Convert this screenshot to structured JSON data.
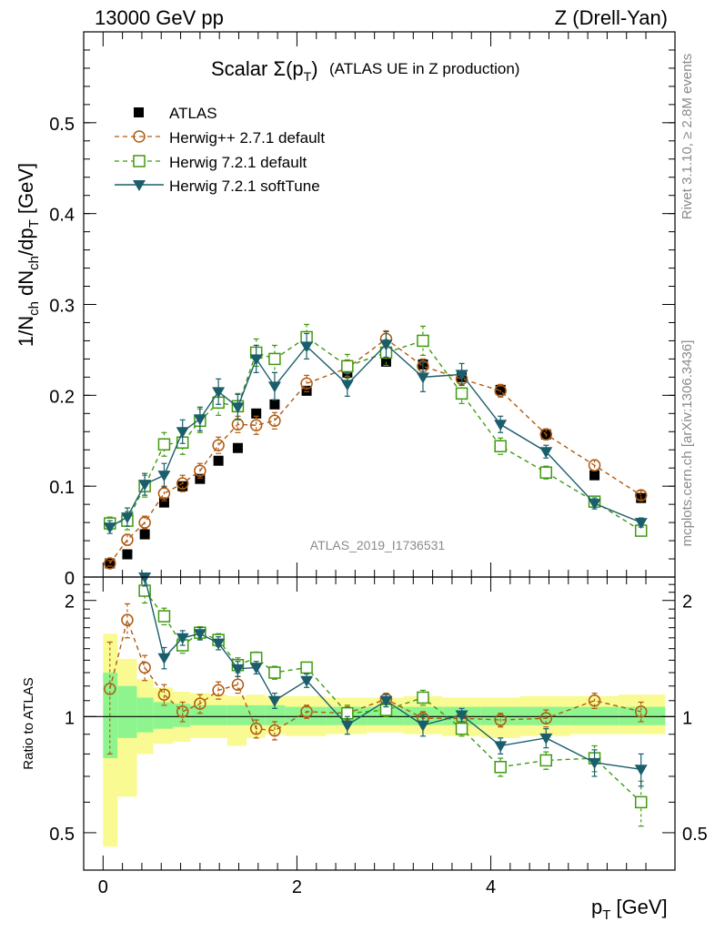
{
  "header": {
    "energy_label": "13000 GeV pp",
    "process_label": "Z (Drell-Yan)"
  },
  "side_text": {
    "rivet": "Rivet 3.1.10, ≥ 2.8M events",
    "source": "mcplots.cern.ch [arXiv:1306.3436]"
  },
  "chart_data": [
    {
      "type": "scatter",
      "title": "Scalar Σ(p_T) (ATLAS UE in Z production)",
      "title_main": "Scalar Σ(p",
      "title_sub": "T",
      "title_close": ")",
      "title_rest": "(ATLAS UE in Z production)",
      "analysis_label": "ATLAS_2019_I1736531",
      "ylabel": "1/N_ch dN_ch/dp_T [GeV]",
      "xlim": [
        -0.2,
        5.9
      ],
      "ylim": [
        0,
        0.6
      ],
      "xticks": [
        0,
        2,
        4
      ],
      "yticks": [
        0,
        0.1,
        0.2,
        0.3,
        0.4,
        0.5
      ],
      "ytick_labels": [
        "0",
        "0.1",
        "0.2",
        "0.3",
        "0.4",
        "0.5"
      ],
      "grid": false,
      "legend_position": "top-left",
      "x": [
        0.07,
        0.25,
        0.43,
        0.63,
        0.82,
        1.0,
        1.19,
        1.39,
        1.58,
        1.77,
        2.1,
        2.52,
        2.92,
        3.3,
        3.7,
        4.1,
        4.57,
        5.07,
        5.55
      ],
      "series": [
        {
          "name": "ATLAS",
          "color": "#000000",
          "marker": "square-filled",
          "values": [
            0.015,
            0.025,
            0.047,
            0.082,
            0.1,
            0.108,
            0.128,
            0.142,
            0.18,
            0.19,
            0.205,
            0.225,
            0.237,
            0.234,
            0.22,
            0.206,
            0.157,
            0.112,
            0.087
          ]
        },
        {
          "name": "Herwig++ 2.7.1 default",
          "color": "#b05a0f",
          "marker": "circle-open",
          "dash": "5,4",
          "values": [
            0.015,
            0.041,
            0.06,
            0.092,
            0.103,
            0.117,
            0.145,
            0.168,
            0.167,
            0.172,
            0.213,
            0.23,
            0.262,
            0.232,
            0.218,
            0.205,
            0.157,
            0.123,
            0.09
          ],
          "errors": [
            0.003,
            0.006,
            0.007,
            0.008,
            0.009,
            0.008,
            0.009,
            0.009,
            0.01,
            0.009,
            0.009,
            0.009,
            0.009,
            0.008,
            0.007,
            0.007,
            0.006,
            0.006,
            0.005
          ]
        },
        {
          "name": "Herwig 7.2.1 default",
          "color": "#3e9a0e",
          "marker": "square-open",
          "dash": "5,4",
          "values": [
            0.059,
            0.062,
            0.1,
            0.146,
            0.148,
            0.172,
            0.192,
            0.188,
            0.247,
            0.24,
            0.264,
            0.232,
            0.247,
            0.26,
            0.202,
            0.144,
            0.115,
            0.083,
            0.051
          ],
          "errors": [
            0.007,
            0.01,
            0.012,
            0.013,
            0.013,
            0.013,
            0.014,
            0.014,
            0.015,
            0.015,
            0.014,
            0.013,
            0.014,
            0.016,
            0.011,
            0.009,
            0.007,
            0.006,
            0.005
          ]
        },
        {
          "name": "Herwig 7.2.1 softTune",
          "color": "#1b5e6b",
          "marker": "triangle-down-filled",
          "values": [
            0.055,
            0.066,
            0.102,
            0.112,
            0.16,
            0.174,
            0.204,
            0.187,
            0.24,
            0.21,
            0.254,
            0.212,
            0.256,
            0.22,
            0.223,
            0.168,
            0.138,
            0.081,
            0.06
          ],
          "errors": [
            0.007,
            0.01,
            0.012,
            0.013,
            0.013,
            0.013,
            0.014,
            0.014,
            0.015,
            0.015,
            0.014,
            0.013,
            0.014,
            0.016,
            0.012,
            0.009,
            0.007,
            0.006,
            0.005
          ]
        }
      ]
    },
    {
      "type": "scatter",
      "ylabel": "Ratio to ATLAS",
      "xlabel": "p_T [GeV]",
      "xlabel_main": "p",
      "xlabel_sub": "T",
      "xlabel_unit": "[GeV]",
      "xlim": [
        -0.2,
        5.9
      ],
      "ylim": [
        0.4,
        2.3
      ],
      "xticks": [
        0,
        2,
        4
      ],
      "xtick_labels": [
        "0",
        "2",
        "4"
      ],
      "yticks": [
        0.5,
        1,
        2
      ],
      "ytick_labels": [
        "0.5",
        "1",
        "2"
      ],
      "reference_line": 1,
      "uncertainty_bands": {
        "bin_edges": [
          0.0,
          0.15,
          0.35,
          0.52,
          0.72,
          0.9,
          1.1,
          1.28,
          1.48,
          1.67,
          1.88,
          2.3,
          2.72,
          3.1,
          3.5,
          3.9,
          4.3,
          4.82,
          5.32,
          5.8
        ],
        "inner_color": "#8ef58e",
        "outer_color": "#fafa92",
        "inner_low": [
          0.78,
          0.88,
          0.91,
          0.93,
          0.94,
          0.95,
          0.95,
          0.95,
          0.95,
          0.95,
          0.95,
          0.95,
          0.95,
          0.95,
          0.95,
          0.95,
          0.95,
          0.95,
          0.95
        ],
        "inner_high": [
          1.3,
          1.2,
          1.12,
          1.09,
          1.08,
          1.07,
          1.07,
          1.07,
          1.07,
          1.07,
          1.06,
          1.06,
          1.06,
          1.06,
          1.06,
          1.06,
          1.06,
          1.06,
          1.06
        ],
        "outer_low": [
          0.46,
          0.62,
          0.8,
          0.85,
          0.86,
          0.88,
          0.88,
          0.84,
          0.88,
          0.9,
          0.89,
          0.9,
          0.91,
          0.9,
          0.89,
          0.88,
          0.89,
          0.9,
          0.9
        ],
        "outer_high": [
          1.64,
          1.41,
          1.25,
          1.19,
          1.16,
          1.15,
          1.14,
          1.13,
          1.14,
          1.13,
          1.13,
          1.12,
          1.12,
          1.13,
          1.12,
          1.12,
          1.13,
          1.13,
          1.14
        ]
      },
      "x": [
        0.07,
        0.25,
        0.43,
        0.63,
        0.82,
        1.0,
        1.19,
        1.39,
        1.58,
        1.77,
        2.1,
        2.52,
        2.92,
        3.3,
        3.7,
        4.1,
        4.57,
        5.07,
        5.55
      ],
      "series": [
        {
          "name": "Herwig++ 2.7.1 default",
          "color": "#b05a0f",
          "marker": "circle-open",
          "dash": "5,4",
          "values": [
            1.18,
            1.78,
            1.34,
            1.14,
            1.03,
            1.08,
            1.17,
            1.21,
            0.93,
            0.92,
            1.03,
            1.02,
            1.11,
            0.99,
            0.99,
            0.98,
            0.99,
            1.1,
            1.03
          ],
          "errors": [
            0.38,
            0.18,
            0.1,
            0.07,
            0.06,
            0.06,
            0.06,
            0.06,
            0.05,
            0.05,
            0.04,
            0.04,
            0.04,
            0.04,
            0.04,
            0.04,
            0.05,
            0.05,
            0.06
          ]
        },
        {
          "name": "Herwig 7.2.1 default",
          "color": "#3e9a0e",
          "marker": "square-open",
          "dash": "5,4",
          "values": [
            null,
            null,
            2.12,
            1.82,
            1.53,
            1.65,
            1.58,
            1.36,
            1.42,
            1.3,
            1.34,
            1.02,
            1.04,
            1.12,
            0.93,
            0.74,
            0.77,
            0.78,
            0.6
          ],
          "errors": [
            0,
            0,
            0.15,
            0.09,
            0.07,
            0.06,
            0.06,
            0.06,
            0.05,
            0.05,
            0.04,
            0.05,
            0.04,
            0.05,
            0.04,
            0.04,
            0.04,
            0.06,
            0.08
          ]
        },
        {
          "name": "Herwig 7.2.1 softTune",
          "color": "#1b5e6b",
          "marker": "triangle-down-filled",
          "values": [
            null,
            null,
            2.3,
            1.42,
            1.6,
            1.64,
            1.55,
            1.33,
            1.34,
            1.1,
            1.24,
            0.95,
            1.1,
            0.95,
            1.01,
            0.84,
            0.88,
            0.76,
            0.73
          ],
          "errors": [
            0,
            0,
            0.12,
            0.09,
            0.07,
            0.06,
            0.06,
            0.06,
            0.05,
            0.05,
            0.05,
            0.05,
            0.04,
            0.06,
            0.04,
            0.04,
            0.05,
            0.06,
            0.07
          ]
        }
      ]
    }
  ]
}
